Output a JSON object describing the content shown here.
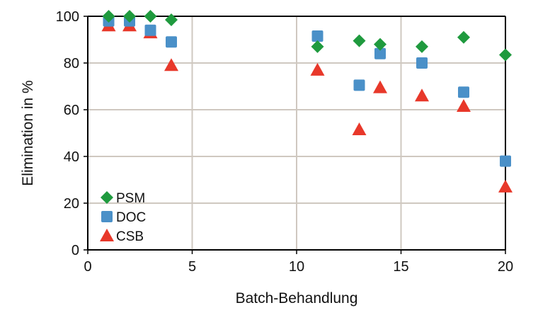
{
  "chart_data": {
    "type": "scatter",
    "title": "",
    "xlabel": "Batch-Behandlung",
    "ylabel": "Elimination  in %",
    "xlim": [
      0,
      20
    ],
    "ylim": [
      0,
      100
    ],
    "xticks": [
      0,
      5,
      10,
      15,
      20
    ],
    "yticks": [
      0,
      20,
      40,
      60,
      80,
      100
    ],
    "grid": true,
    "legend_position": "bottom-left",
    "x": [
      1,
      2,
      3,
      4,
      11,
      13,
      14,
      16,
      18,
      20
    ],
    "series": [
      {
        "name": "PSM",
        "marker": "diamond",
        "color": "#1f9a3e",
        "values": [
          100,
          100,
          100,
          98.5,
          87,
          89.5,
          88,
          87,
          91,
          83.5
        ]
      },
      {
        "name": "DOC",
        "marker": "square",
        "color": "#4a90c8",
        "values": [
          98,
          98,
          94,
          89,
          91.5,
          70.5,
          84,
          80,
          67.5,
          38
        ]
      },
      {
        "name": "CSB",
        "marker": "triangle",
        "color": "#e8382a",
        "values": [
          96,
          96,
          93,
          79,
          77,
          51.5,
          69.5,
          66,
          61.5,
          27
        ]
      }
    ]
  }
}
